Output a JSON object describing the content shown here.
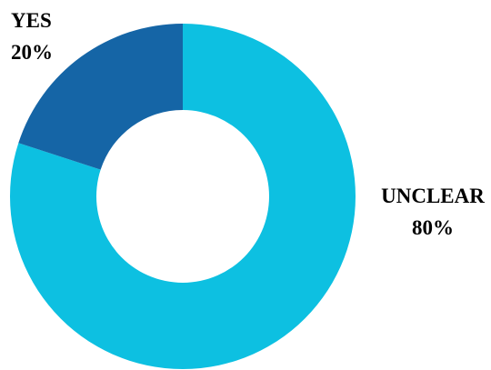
{
  "chart_data": {
    "type": "pie",
    "style": "donut",
    "title": "",
    "slices": [
      {
        "label": "UNCLEAR",
        "value": 80,
        "value_label": "80%",
        "color": "#0DC0E1"
      },
      {
        "label": "YES",
        "value": 20,
        "value_label": "20%",
        "color": "#1565A6"
      }
    ]
  }
}
